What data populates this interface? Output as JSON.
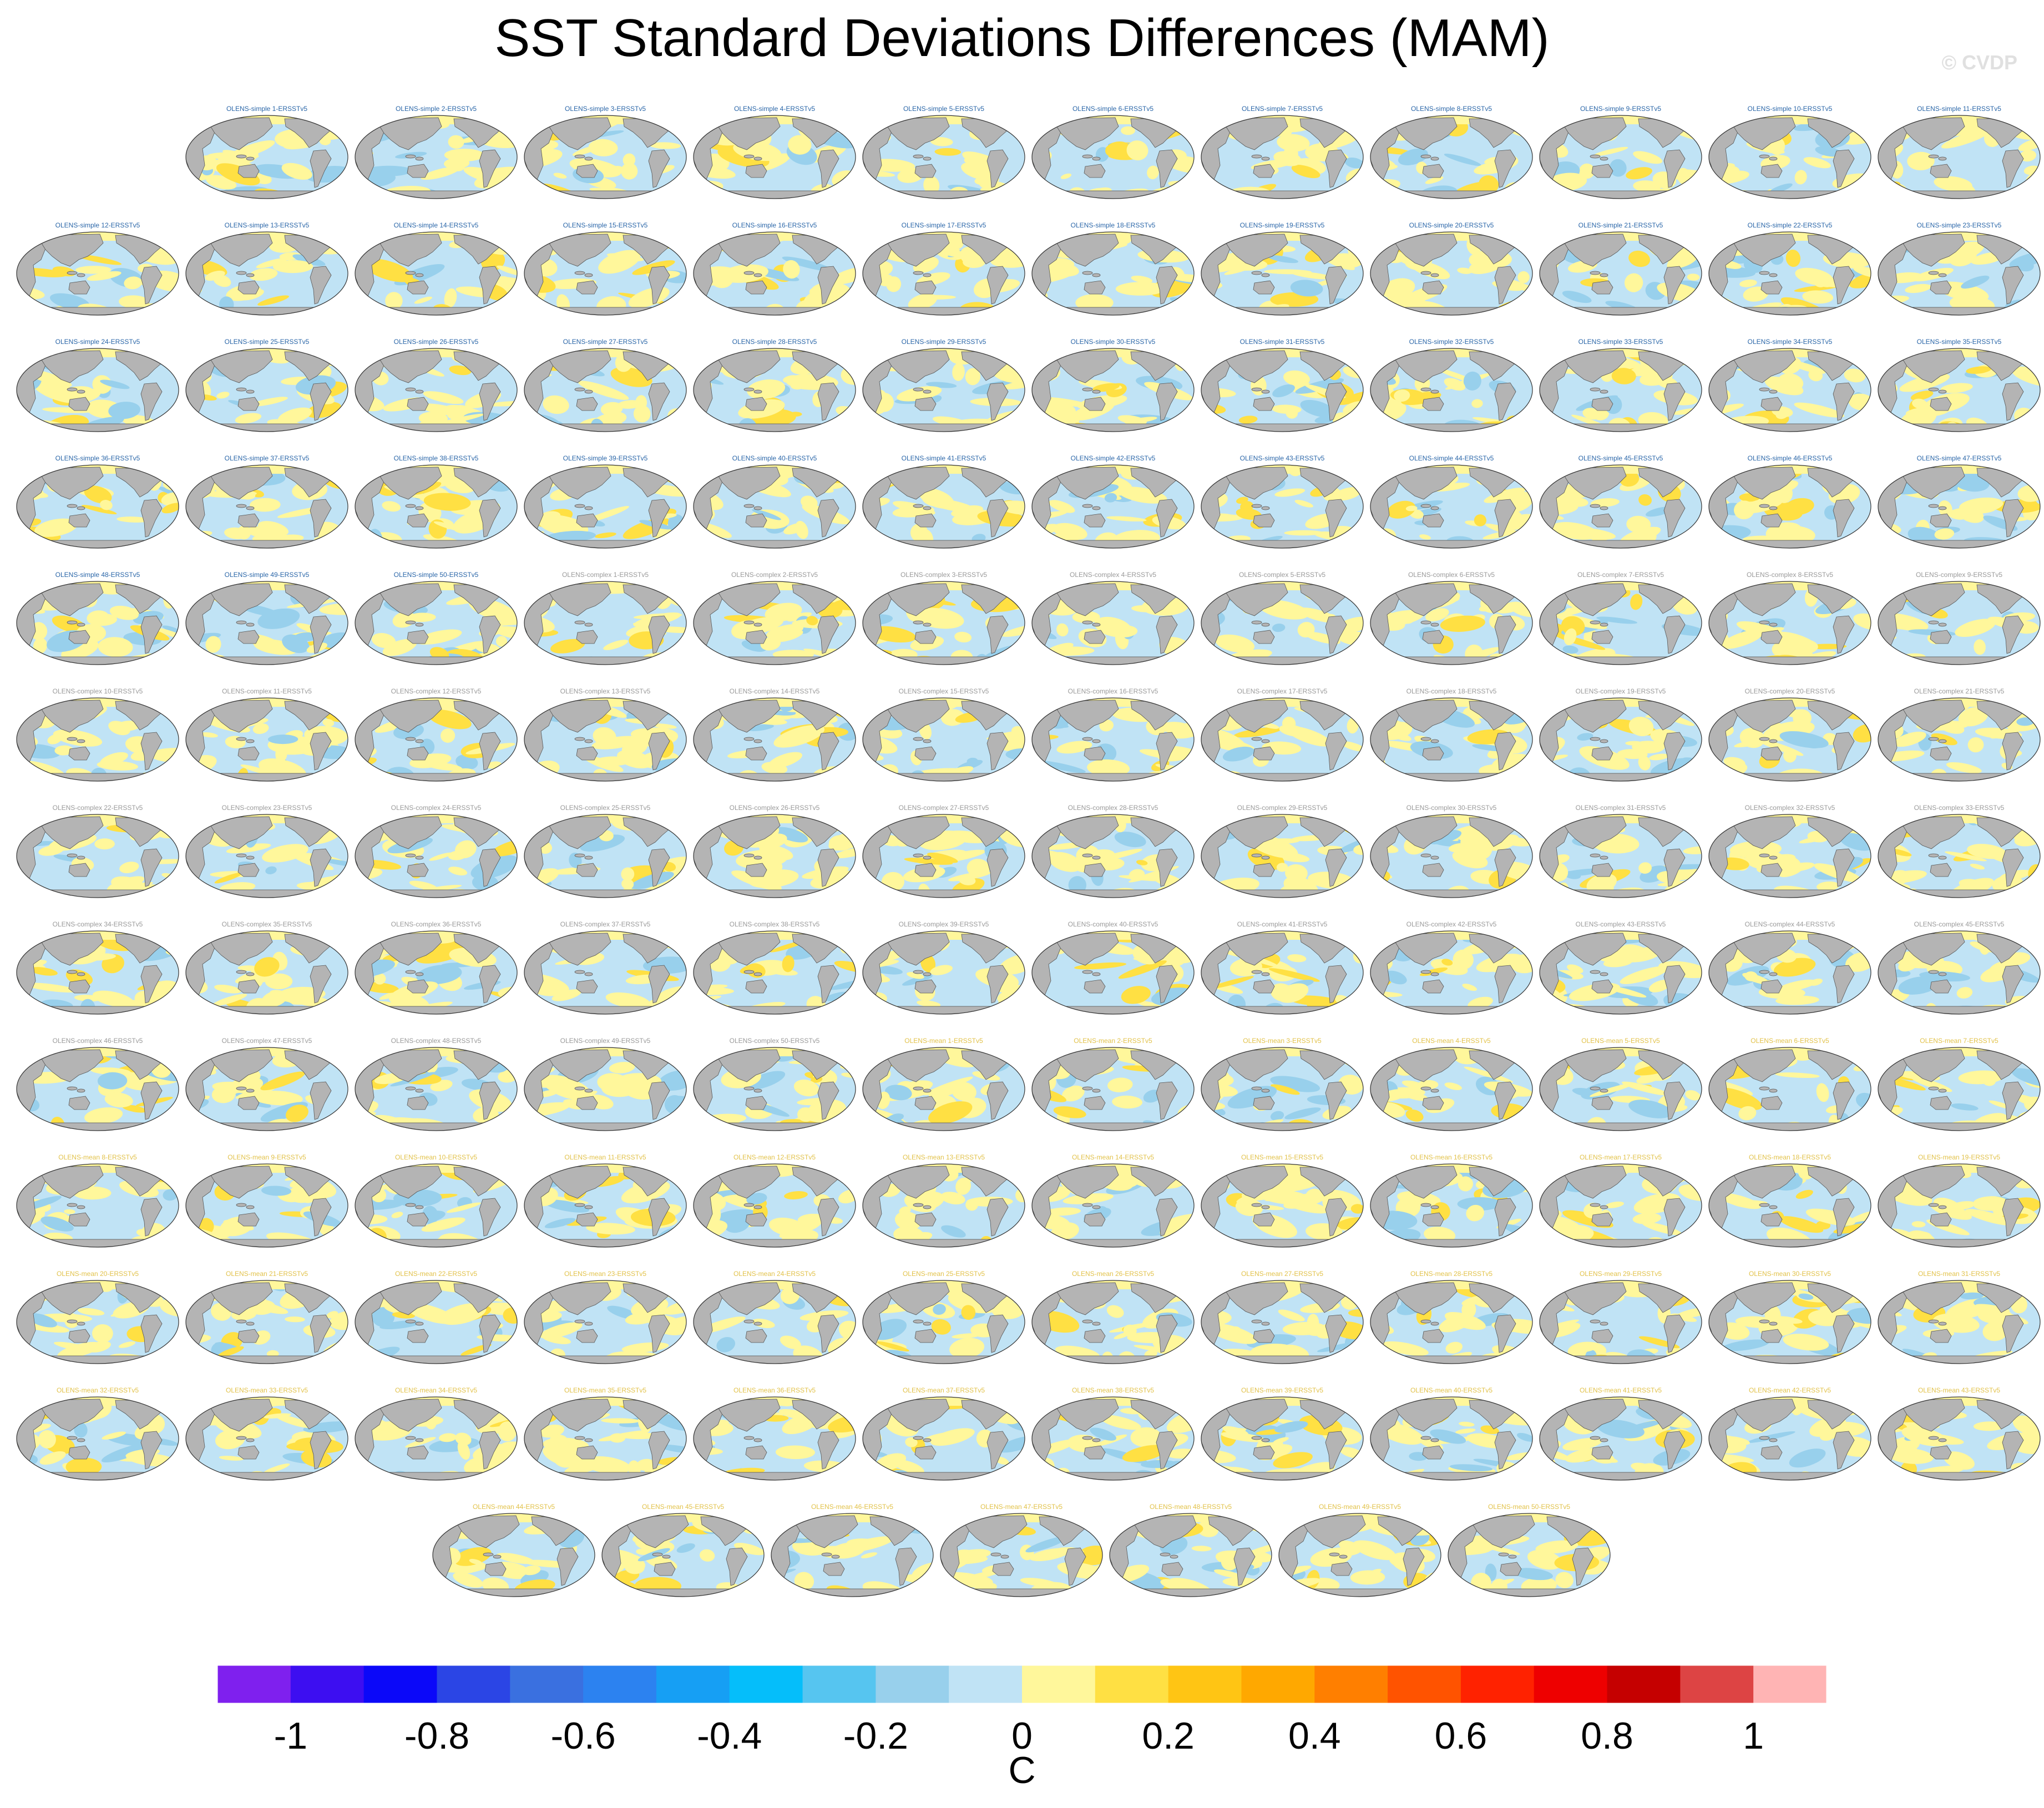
{
  "title": "SST Standard Deviations Differences (MAM)",
  "watermark": "© CVDP",
  "chart_data": {
    "type": "heatmap",
    "title": "SST Standard Deviations Differences (MAM)",
    "panel_titles": {
      "simple": "OLENS-simple {n}-ERSSTv5",
      "complex": "OLENS-complex {n}-ERSSTv5",
      "mean": "OLENS-mean {n}-ERSSTv5"
    },
    "groups": [
      {
        "name": "simple",
        "count": 50,
        "title_color": "#2a66a8"
      },
      {
        "name": "complex",
        "count": 50,
        "title_color": "#9a9a9a"
      },
      {
        "name": "mean",
        "count": 50,
        "title_color": "#e2c24a"
      }
    ],
    "colorbar": {
      "label": "C",
      "range": [
        -1.1,
        1.1
      ],
      "step": 0.1,
      "ticks": [
        -1,
        -0.8,
        -0.6,
        -0.4,
        -0.2,
        0,
        0.2,
        0.4,
        0.6,
        0.8,
        1
      ],
      "tick_labels": [
        "-1",
        "-0.8",
        "-0.6",
        "-0.4",
        "-0.2",
        "0",
        "0.2",
        "0.4",
        "0.6",
        "0.8",
        "1"
      ],
      "colors": [
        "#7f20ee",
        "#3d0ef1",
        "#0b08f9",
        "#2b45e5",
        "#3a70e0",
        "#2c82f0",
        "#169ff4",
        "#05befa",
        "#56c5f0",
        "#98d0ec",
        "#c0e3f5",
        "#fff79b",
        "#ffe043",
        "#ffc514",
        "#ffa800",
        "#ff7f00",
        "#ff5300",
        "#ff2200",
        "#ee0000",
        "#c50000",
        "#dd4444",
        "#ffb4b4"
      ]
    },
    "map_colors": {
      "land": "#b4b4b4",
      "ocean_negative": "#c0e3f5",
      "ocean_positive": "#fff79b",
      "ocean_positive_strong": "#ffe043",
      "ocean_negative_strong": "#98d0ec"
    }
  }
}
